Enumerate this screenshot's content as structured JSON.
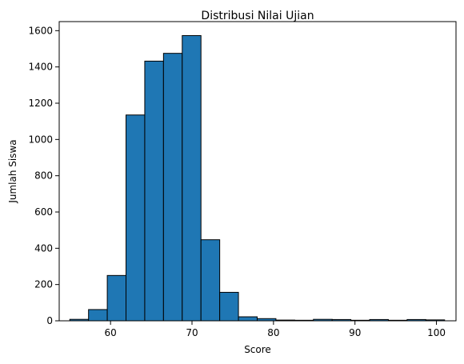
{
  "chart_data": {
    "type": "bar",
    "title": "Distribusi Nilai Ujian",
    "xlabel": "Score",
    "ylabel": "Jumlah Siswa",
    "xlim": [
      53.7,
      102.4
    ],
    "ylim": [
      0,
      1650
    ],
    "xticks": [
      60,
      70,
      80,
      90,
      100
    ],
    "yticks": [
      0,
      200,
      400,
      600,
      800,
      1000,
      1200,
      1400,
      1600
    ],
    "bins": [
      {
        "x0": 55.0,
        "x1": 57.3,
        "count": 8
      },
      {
        "x0": 57.3,
        "x1": 59.6,
        "count": 62
      },
      {
        "x0": 59.6,
        "x1": 61.9,
        "count": 250
      },
      {
        "x0": 61.9,
        "x1": 64.2,
        "count": 1135
      },
      {
        "x0": 64.2,
        "x1": 66.5,
        "count": 1432
      },
      {
        "x0": 66.5,
        "x1": 68.8,
        "count": 1475
      },
      {
        "x0": 68.8,
        "x1": 71.1,
        "count": 1573
      },
      {
        "x0": 71.1,
        "x1": 73.4,
        "count": 447
      },
      {
        "x0": 73.4,
        "x1": 75.7,
        "count": 157
      },
      {
        "x0": 75.7,
        "x1": 78.0,
        "count": 22
      },
      {
        "x0": 78.0,
        "x1": 80.3,
        "count": 12
      },
      {
        "x0": 80.3,
        "x1": 82.6,
        "count": 4
      },
      {
        "x0": 82.6,
        "x1": 84.9,
        "count": 3
      },
      {
        "x0": 84.9,
        "x1": 87.2,
        "count": 8
      },
      {
        "x0": 87.2,
        "x1": 89.5,
        "count": 7
      },
      {
        "x0": 89.5,
        "x1": 91.8,
        "count": 3
      },
      {
        "x0": 91.8,
        "x1": 94.1,
        "count": 7
      },
      {
        "x0": 94.1,
        "x1": 96.4,
        "count": 3
      },
      {
        "x0": 96.4,
        "x1": 98.7,
        "count": 7
      },
      {
        "x0": 98.7,
        "x1": 101.0,
        "count": 5
      }
    ],
    "grid": false,
    "colors": {
      "bar_fill": "#1f77b4",
      "bar_edge": "#000000"
    }
  }
}
